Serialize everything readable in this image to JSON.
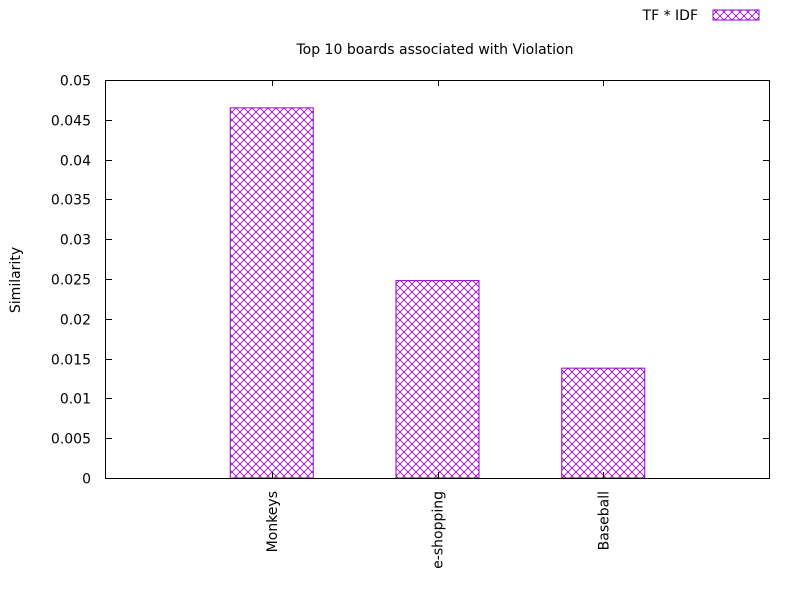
{
  "chart_data": {
    "type": "bar",
    "title": "Top 10 boards associated with Violation",
    "xlabel": "",
    "ylabel": "Similarity",
    "categories": [
      "Monkeys",
      "e-shopping",
      "Baseball"
    ],
    "series": [
      {
        "name": "TF * IDF",
        "values": [
          0.0465,
          0.0248,
          0.0138
        ],
        "color": "#9400d3",
        "pattern": "crosshatch"
      }
    ],
    "ylim": [
      0,
      0.05
    ],
    "yticks": [
      "0",
      "0.005",
      "0.01",
      "0.015",
      "0.02",
      "0.025",
      "0.03",
      "0.035",
      "0.04",
      "0.045",
      "0.05"
    ],
    "grid": false,
    "legend_position": "top-right"
  }
}
